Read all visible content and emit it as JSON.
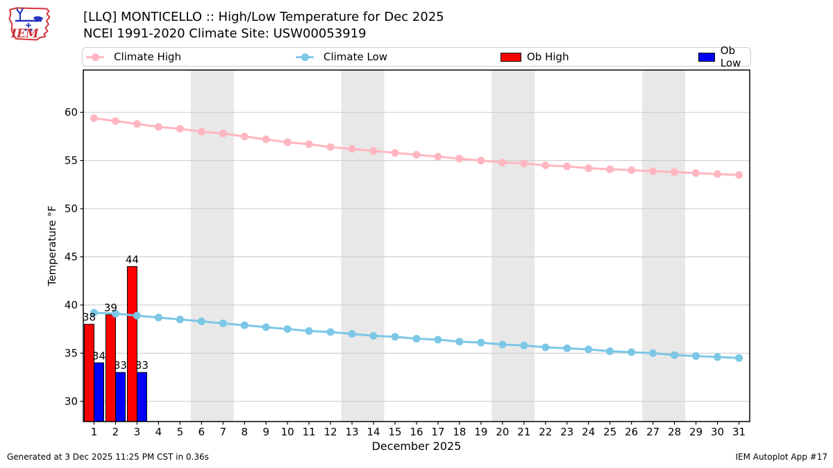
{
  "header": {
    "title_line1": "[LLQ] MONTICELLO :: High/Low Temperature for Dec 2025",
    "title_line2": "NCEI 1991-2020 Climate Site: USW00053919",
    "logo_text": "IEM"
  },
  "legend": {
    "items": [
      {
        "label": "Climate High",
        "type": "line",
        "color": "#ffb6c1"
      },
      {
        "label": "Climate Low",
        "type": "line",
        "color": "#7cc7e6"
      },
      {
        "label": "Ob High",
        "type": "patch",
        "color": "#ff0000"
      },
      {
        "label": "Ob Low",
        "type": "patch",
        "color": "#0000ff"
      }
    ]
  },
  "footer": {
    "generated": "Generated at 3 Dec 2025 11:25 PM CST in 0.36s",
    "app": "IEM Autoplot App #17"
  },
  "chart_data": {
    "type": "line+bar",
    "title": "[LLQ] MONTICELLO :: High/Low Temperature for Dec 2025",
    "xlabel": "December 2025",
    "ylabel": "Temperature °F",
    "x": [
      1,
      2,
      3,
      4,
      5,
      6,
      7,
      8,
      9,
      10,
      11,
      12,
      13,
      14,
      15,
      16,
      17,
      18,
      19,
      20,
      21,
      22,
      23,
      24,
      25,
      26,
      27,
      28,
      29,
      30,
      31
    ],
    "yticks": [
      30,
      35,
      40,
      45,
      50,
      55,
      60
    ],
    "ylim": [
      27.9,
      64.4
    ],
    "xlim": [
      0.5,
      31.5
    ],
    "grid": "horizontal",
    "band_color": "#e8e8e8",
    "weekend_bands": [
      [
        5.5,
        7.5
      ],
      [
        12.5,
        14.5
      ],
      [
        19.5,
        21.5
      ],
      [
        26.5,
        28.5
      ]
    ],
    "series": [
      {
        "name": "Climate High",
        "type": "line",
        "color": "#ffb6c1",
        "values": [
          59.4,
          59.1,
          58.8,
          58.5,
          58.3,
          58.0,
          57.8,
          57.5,
          57.2,
          56.9,
          56.7,
          56.4,
          56.2,
          56.0,
          55.8,
          55.6,
          55.4,
          55.2,
          55.0,
          54.8,
          54.7,
          54.5,
          54.4,
          54.2,
          54.1,
          54.0,
          53.9,
          53.8,
          53.7,
          53.6,
          53.5
        ]
      },
      {
        "name": "Climate Low",
        "type": "line",
        "color": "#7cc7e6",
        "values": [
          39.2,
          39.1,
          38.9,
          38.7,
          38.5,
          38.3,
          38.1,
          37.9,
          37.7,
          37.5,
          37.3,
          37.2,
          37.0,
          36.8,
          36.7,
          36.5,
          36.4,
          36.2,
          36.1,
          35.9,
          35.8,
          35.6,
          35.5,
          35.4,
          35.2,
          35.1,
          35.0,
          34.8,
          34.7,
          34.6,
          34.5
        ]
      },
      {
        "name": "Ob High",
        "type": "bar",
        "side": "left",
        "color": "#ff0000",
        "days": [
          1,
          2,
          3
        ],
        "values": [
          38,
          39,
          44
        ]
      },
      {
        "name": "Ob Low",
        "type": "bar",
        "side": "right",
        "color": "#0000ff",
        "days": [
          1,
          2,
          3
        ],
        "values": [
          34,
          33,
          33
        ]
      }
    ]
  }
}
